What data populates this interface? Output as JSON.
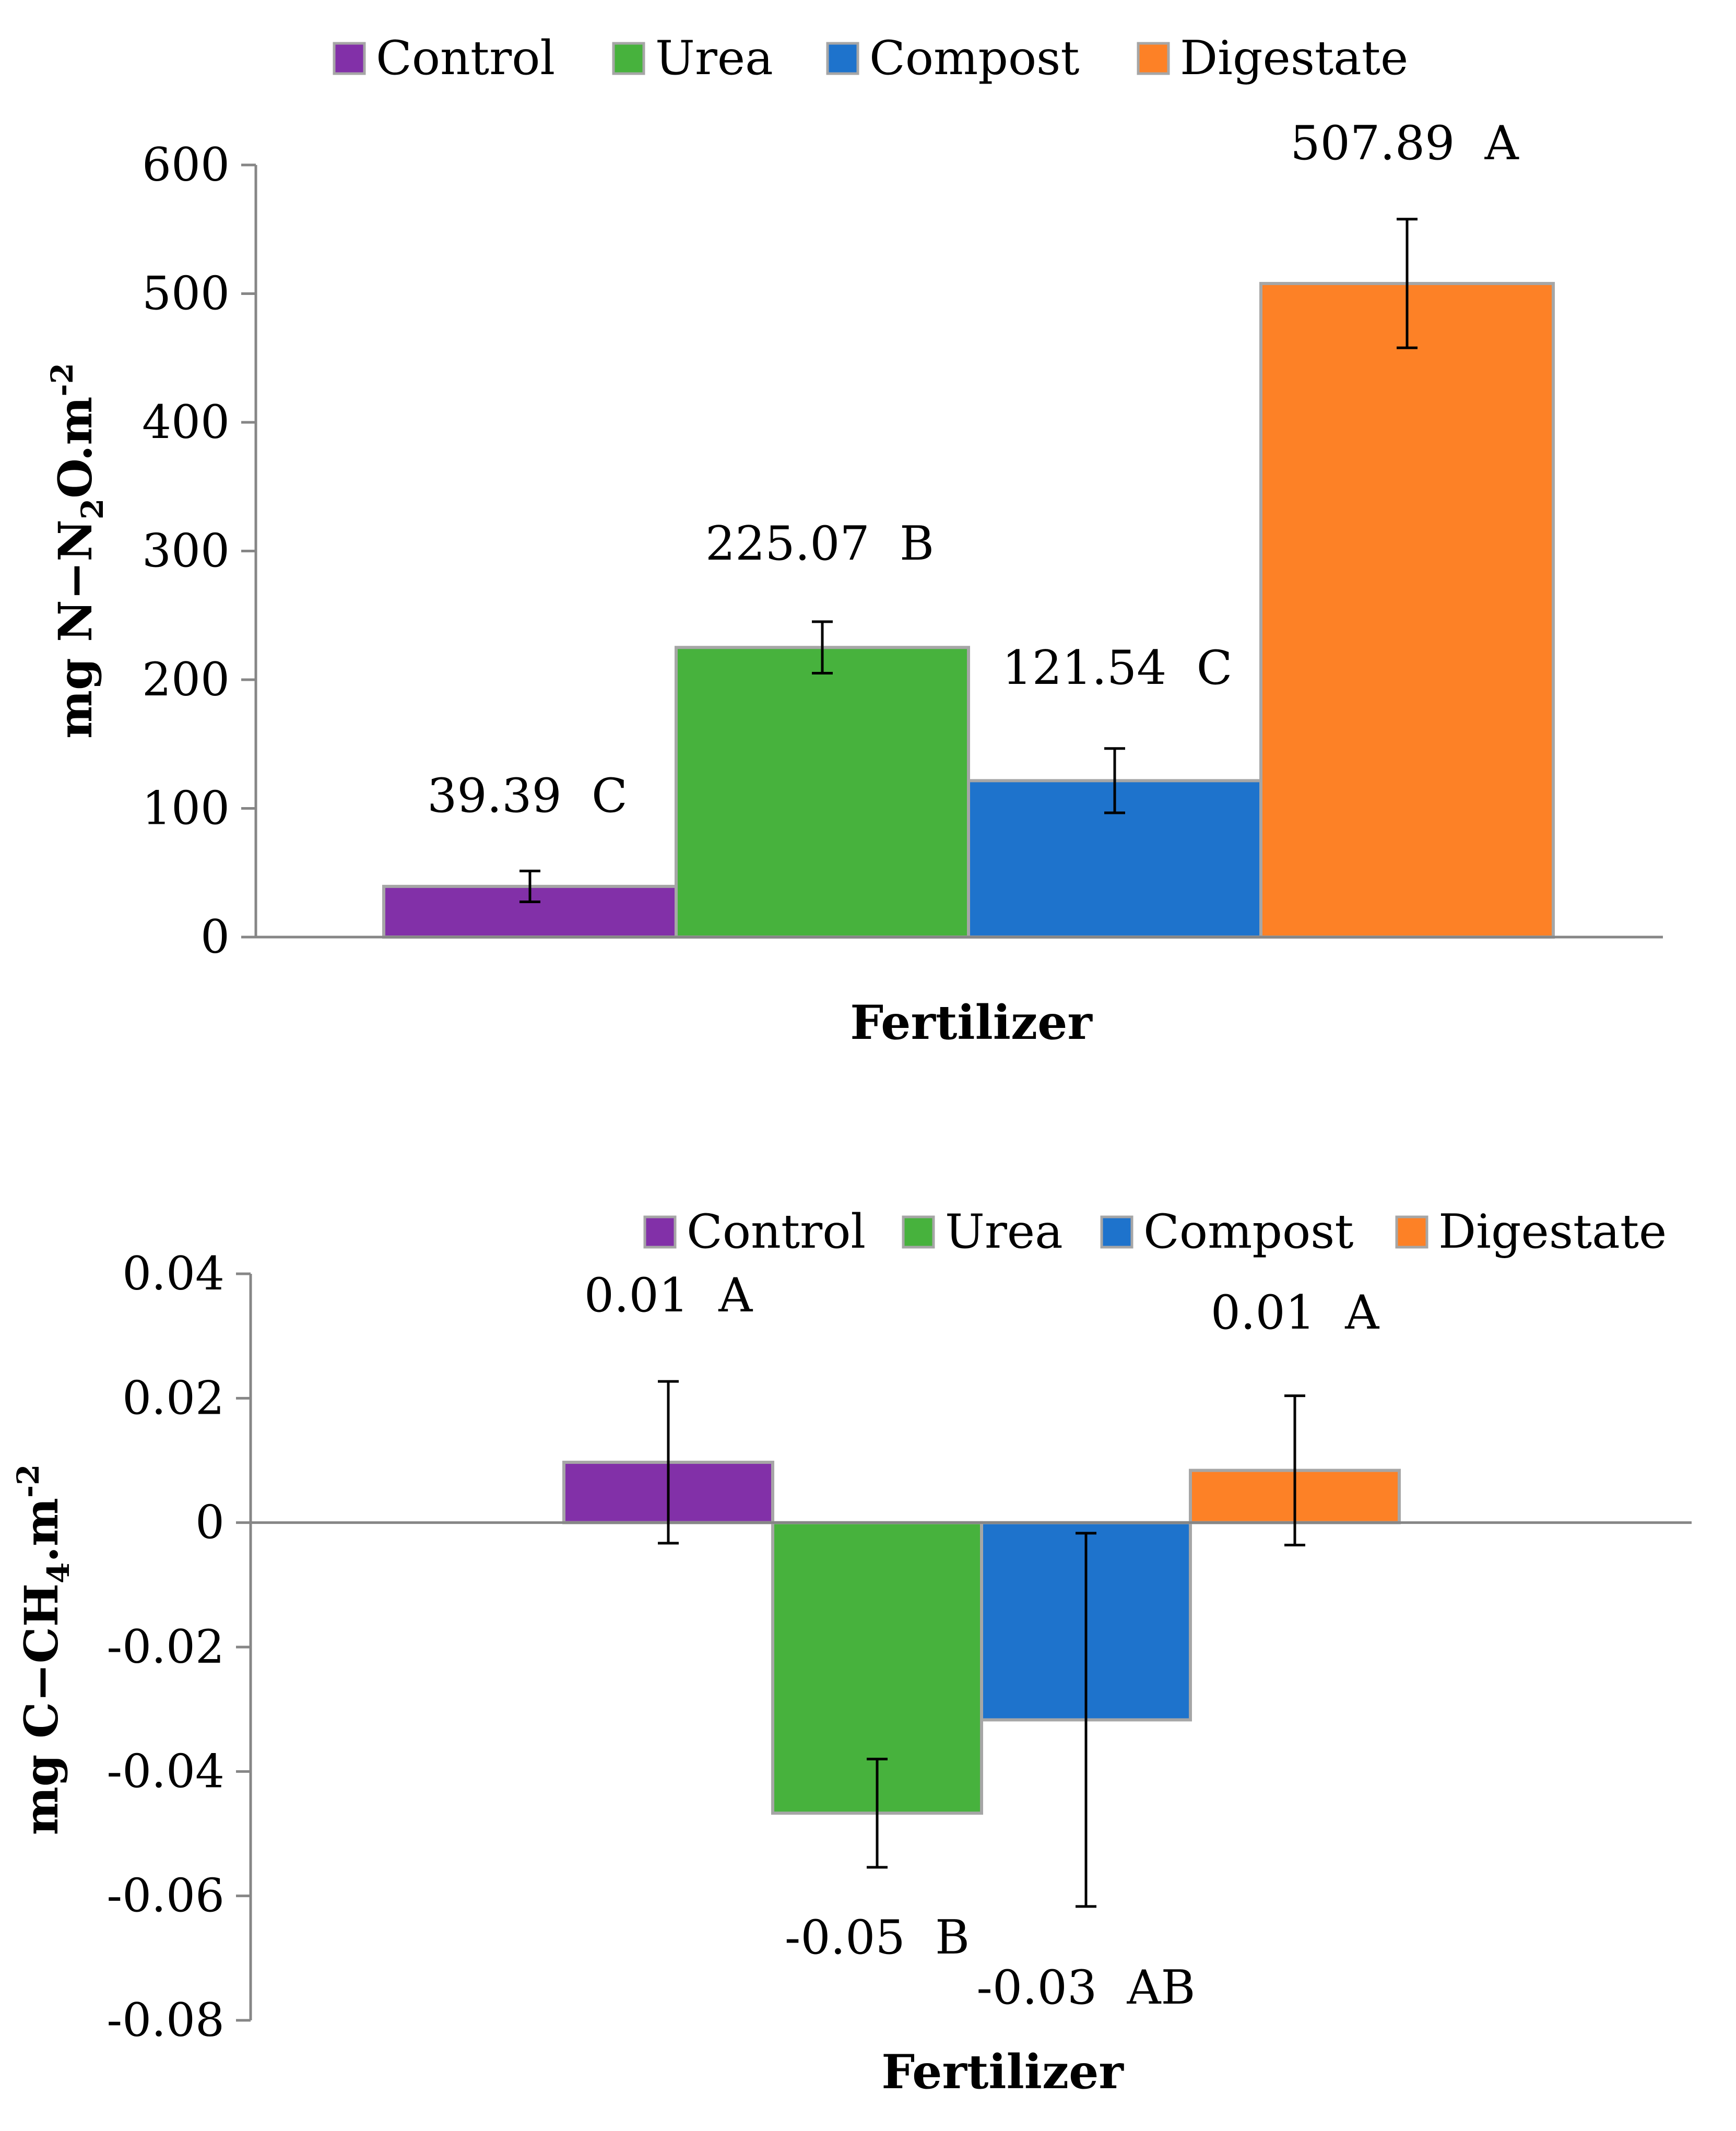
{
  "chart_data": [
    {
      "type": "bar",
      "title": "",
      "xlabel": "Fertilizer",
      "ylabel": "mg N−N",
      "ylabel_sub": "2",
      "ylabel_tail": "O.m",
      "ylabel_sup": "-2",
      "legend_position": "top",
      "ylim": [
        0,
        600
      ],
      "yticks": [
        0,
        100,
        200,
        300,
        400,
        500,
        600
      ],
      "ytick_labels": [
        "0",
        "100",
        "200",
        "300",
        "400",
        "500",
        "600"
      ],
      "grid": false,
      "series": [
        {
          "name": "Control",
          "color": "#8230A8",
          "value": 39.39,
          "error": 12,
          "label": "39.39",
          "group": "C"
        },
        {
          "name": "Urea",
          "color": "#47B23D",
          "value": 225.07,
          "error": 20,
          "label": "225.07",
          "group": "B"
        },
        {
          "name": "Compost",
          "color": "#1E73CC",
          "value": 121.54,
          "error": 25,
          "label": "121.54",
          "group": "C"
        },
        {
          "name": "Digestate",
          "color": "#FD8126",
          "value": 507.89,
          "error": 50,
          "label": "507.89",
          "group": "A"
        }
      ]
    },
    {
      "type": "bar",
      "title": "",
      "xlabel": "Fertilizer",
      "ylabel": "mg C−CH",
      "ylabel_sub": "4",
      "ylabel_tail": ".m",
      "ylabel_sup": "-2",
      "legend_position": "top-right",
      "ylim": [
        -0.08,
        0.04
      ],
      "yticks": [
        -0.08,
        -0.06,
        -0.04,
        -0.02,
        0,
        0.02,
        0.04
      ],
      "ytick_labels": [
        "-0.08",
        "-0.06",
        "-0.04",
        "-0.02",
        "0",
        "0.02",
        "0.04"
      ],
      "grid": false,
      "series": [
        {
          "name": "Control",
          "color": "#8230A8",
          "value": 0.0097,
          "error": 0.013,
          "label": "0.01",
          "group": "A"
        },
        {
          "name": "Urea",
          "color": "#47B23D",
          "value": -0.0467,
          "error": 0.0087,
          "label": "-0.05",
          "group": "B"
        },
        {
          "name": "Compost",
          "color": "#1E73CC",
          "value": -0.0317,
          "error": 0.03,
          "label": "-0.03",
          "group": "AB"
        },
        {
          "name": "Digestate",
          "color": "#FD8126",
          "value": 0.0084,
          "error": 0.012,
          "label": "0.01",
          "group": "A"
        }
      ]
    }
  ]
}
